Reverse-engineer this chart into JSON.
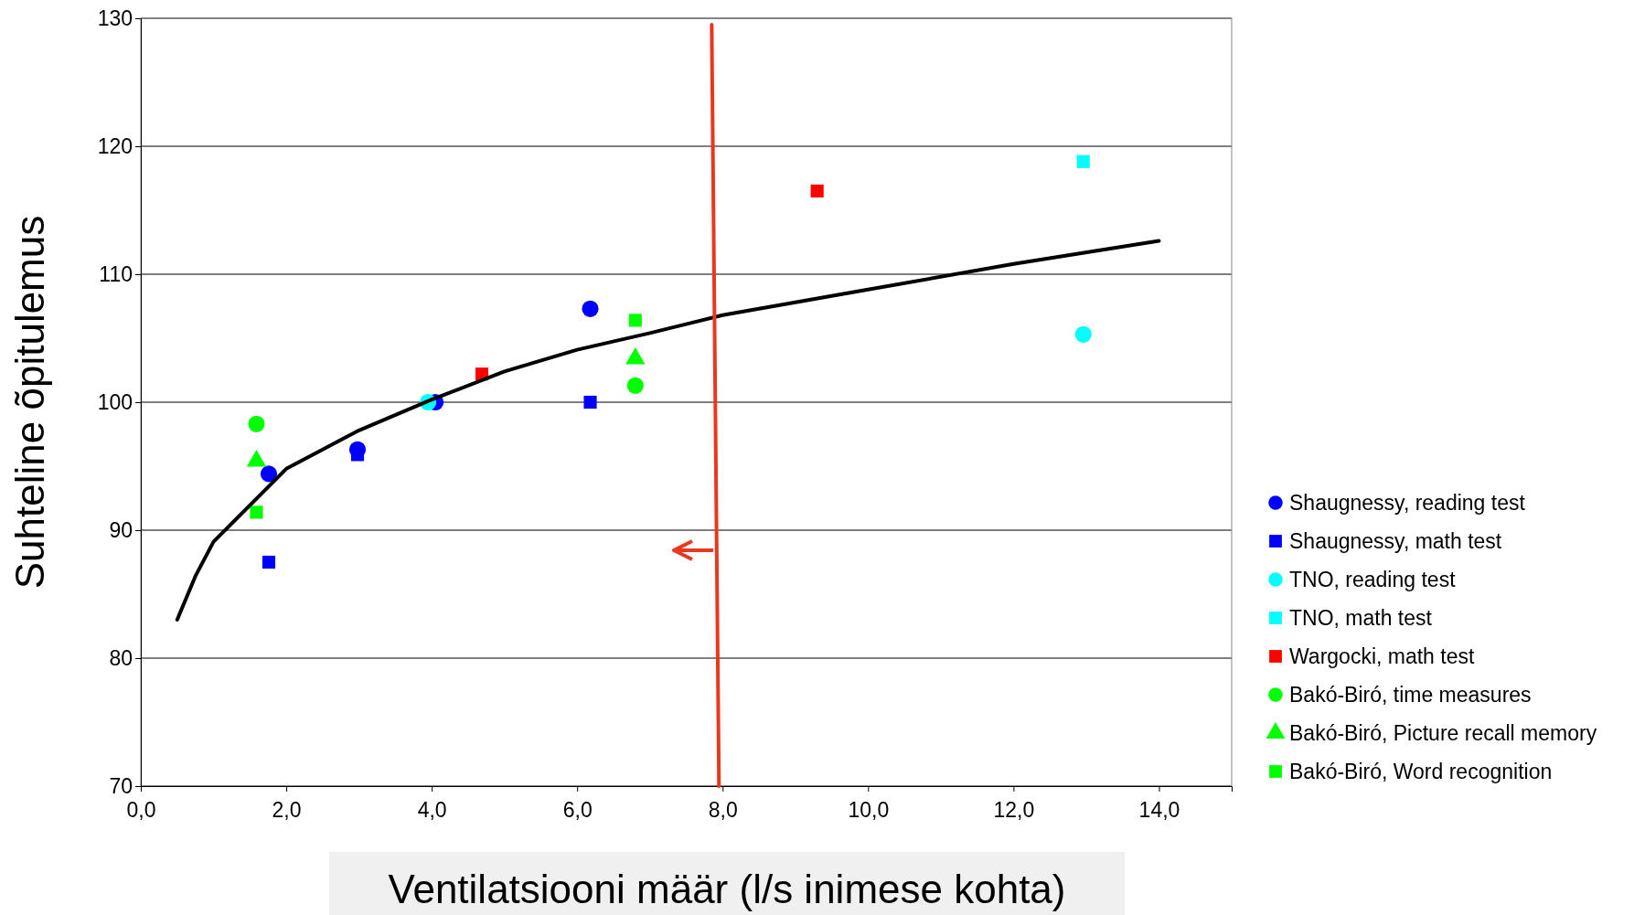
{
  "chart_data": {
    "type": "scatter",
    "xlabel": "Ventilatsiooni määr (l/s inimese kohta)",
    "ylabel": "Suhteline õpitulemus",
    "xlim": [
      0,
      15
    ],
    "ylim": [
      70,
      130
    ],
    "xticks": [
      {
        "value": 0,
        "label": "0,0"
      },
      {
        "value": 2,
        "label": "2,0"
      },
      {
        "value": 4,
        "label": "4,0"
      },
      {
        "value": 6,
        "label": "6,0"
      },
      {
        "value": 8,
        "label": "8,0"
      },
      {
        "value": 10,
        "label": "10,0"
      },
      {
        "value": 12,
        "label": "12,0"
      },
      {
        "value": 14,
        "label": "14,0"
      }
    ],
    "yticks": [
      70,
      80,
      90,
      100,
      110,
      120,
      130
    ],
    "grid": "y",
    "legend": "right",
    "series": [
      {
        "name": "Shaugnessy, reading test",
        "color": "#0000ff",
        "marker": "circle",
        "x": [
          1.76,
          2.98,
          4.05,
          6.18
        ],
        "values": [
          94.4,
          96.3,
          100,
          107.3
        ]
      },
      {
        "name": "Shaugnessy, math test",
        "color": "#0000ff",
        "marker": "square",
        "x": [
          1.76,
          2.98,
          6.18
        ],
        "values": [
          87.5,
          95.9,
          100
        ]
      },
      {
        "name": "TNO, reading test",
        "color": "#00ffff",
        "marker": "circle",
        "x": [
          3.95,
          12.96
        ],
        "values": [
          100,
          105.3
        ]
      },
      {
        "name": "TNO, math test",
        "color": "#00ffff",
        "marker": "square",
        "x": [
          12.96
        ],
        "values": [
          118.8
        ]
      },
      {
        "name": "Wargocki, math test",
        "color": "#ff0000",
        "marker": "square",
        "x": [
          4.69,
          9.3
        ],
        "values": [
          102.2,
          116.5
        ]
      },
      {
        "name": "Bakó-Biró, time measures",
        "color": "#00ff00",
        "marker": "circle",
        "x": [
          1.59,
          6.8
        ],
        "values": [
          98.3,
          101.3
        ]
      },
      {
        "name": "Bakó-Biró, Picture recall memory",
        "color": "#00ff00",
        "marker": "triangle",
        "x": [
          1.59,
          6.8
        ],
        "values": [
          95.4,
          103.4
        ]
      },
      {
        "name": "Bakó-Biró, Word recognition",
        "color": "#00ff00",
        "marker": "square",
        "x": [
          1.59,
          6.8
        ],
        "values": [
          91.4,
          106.4
        ]
      },
      {
        "type": "line",
        "color": "#000000",
        "marker": "none",
        "x": [
          0.5,
          0.75,
          1,
          2,
          3,
          4,
          5,
          6,
          7,
          8,
          10,
          12,
          14
        ],
        "values": [
          83,
          86.4,
          89.1,
          94.8,
          97.8,
          100.2,
          102.4,
          104.1,
          105.4,
          106.8,
          108.8,
          110.8,
          112.6
        ]
      },
      {
        "type": "line",
        "color": "#e8391f",
        "marker": "none",
        "x": [
          7.85,
          7.95
        ],
        "values": [
          129.5,
          70
        ]
      }
    ]
  }
}
